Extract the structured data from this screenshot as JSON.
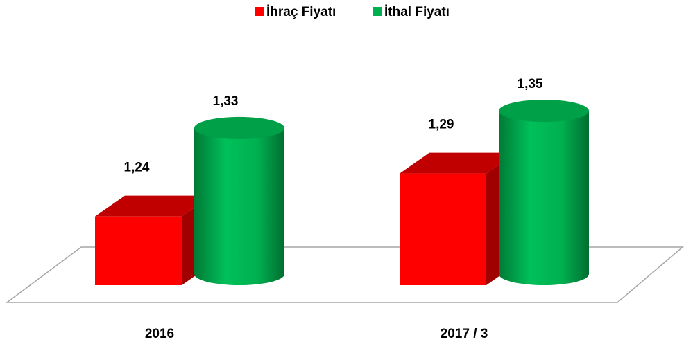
{
  "chart_data": {
    "type": "bar3d",
    "categories": [
      "2016",
      "2017 / 3"
    ],
    "series": [
      {
        "name": "İhraç Fiyatı",
        "color": "#ff0000",
        "values": [
          1.24,
          1.29
        ],
        "value_labels": [
          "1,24",
          "1,29"
        ]
      },
      {
        "name": "İthal Fiyatı",
        "color": "#00b050",
        "values": [
          1.33,
          1.35
        ],
        "value_labels": [
          "1,33",
          "1,35"
        ]
      }
    ],
    "ylim": [
      1.16,
      1.4
    ],
    "legend": "top"
  }
}
